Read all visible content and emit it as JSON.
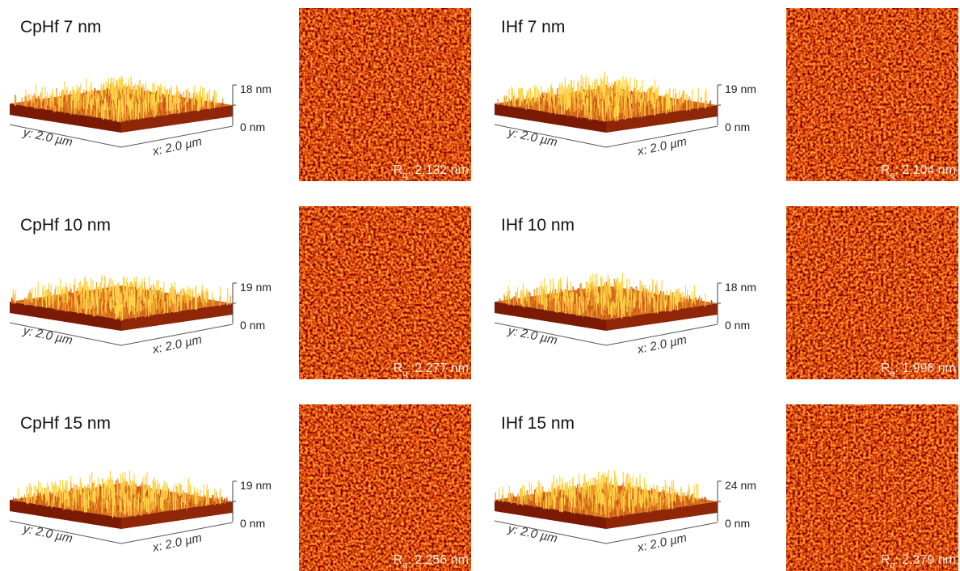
{
  "panels": [
    {
      "title": "CpHf 7 nm",
      "z_max": "18 nm",
      "z_min": "0 nm",
      "y_axis": "y: 2.0 µm",
      "x_axis": "x: 2.0 µm",
      "rq_symbol": "R",
      "rq_sub": "q",
      "rq_value": ": 2.132 nm"
    },
    {
      "title": "IHf 7 nm",
      "z_max": "19 nm",
      "z_min": "0 nm",
      "y_axis": "y: 2.0 µm",
      "x_axis": "x: 2.0 µm",
      "rq_symbol": "R",
      "rq_sub": "q",
      "rq_value": ": 2.104 nm"
    },
    {
      "title": "CpHf 10 nm",
      "z_max": "19 nm",
      "z_min": "0 nm",
      "y_axis": "y: 2.0 µm",
      "x_axis": "x: 2.0 µm",
      "rq_symbol": "R",
      "rq_sub": "q",
      "rq_value": ": 2.277 nm"
    },
    {
      "title": "IHf 10 nm",
      "z_max": "18 nm",
      "z_min": "0 nm",
      "y_axis": "y: 2.0 µm",
      "x_axis": "x: 2.0 µm",
      "rq_symbol": "R",
      "rq_sub": "q",
      "rq_value": ": 1.998 nm"
    },
    {
      "title": "CpHf 15 nm",
      "z_max": "19 nm",
      "z_min": "0 nm",
      "y_axis": "y: 2.0 µm",
      "x_axis": "x: 2.0 µm",
      "rq_symbol": "R",
      "rq_sub": "q",
      "rq_value": ": 2.256 nm"
    },
    {
      "title": "IHf 15 nm",
      "z_max": "24 nm",
      "z_min": "0 nm",
      "y_axis": "y: 2.0 µm",
      "x_axis": "x: 2.0 µm",
      "rq_symbol": "R",
      "rq_sub": "q",
      "rq_value": ": 2.379 nm"
    }
  ]
}
